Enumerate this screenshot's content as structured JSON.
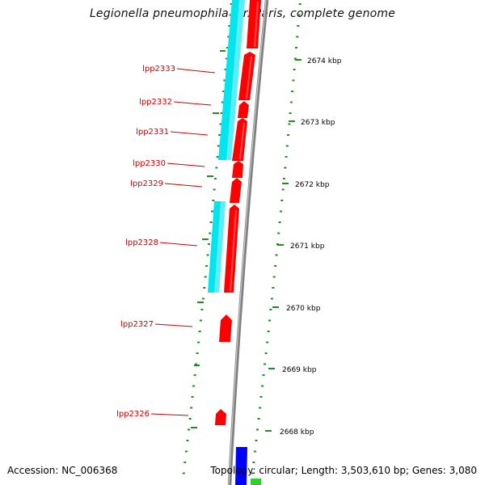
{
  "title": "Legionella pneumophila str. Paris, complete genome",
  "footer": {
    "accession": "Accession: NC_006368",
    "summary": "Topology: circular; Length: 3,503,610 bp; Genes: 3,080"
  },
  "colors": {
    "backbone": "#808080",
    "gene_forward": "#ff0000",
    "cog_track": "#00e5ee",
    "tick": "#1f8f1f",
    "label": "#cc0000",
    "blue_feature": "#0000ff",
    "green_feature": "#33cc33"
  },
  "kbp_ticks": [
    "2674 kbp",
    "2673 kbp",
    "2672 kbp",
    "2671 kbp",
    "2670 kbp",
    "2669 kbp",
    "2668 kbp"
  ],
  "genes": [
    "lpp2333",
    "lpp2332",
    "lpp2331",
    "lpp2330",
    "lpp2329",
    "lpp2328",
    "lpp2327",
    "lpp2326"
  ]
}
